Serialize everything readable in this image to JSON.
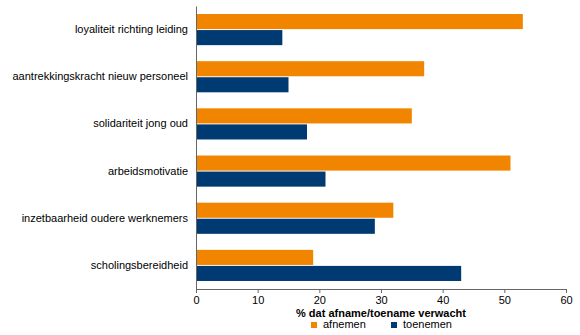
{
  "chart_data": {
    "type": "bar",
    "orientation": "horizontal",
    "categories": [
      "loyaliteit richting leiding",
      "aantrekkingskracht nieuw personeel",
      "solidariteit jong oud",
      "arbeidsmotivatie",
      "inzetbaarheid oudere werknemers",
      "scholingsbereidheid"
    ],
    "series": [
      {
        "name": "afnemen",
        "color": "#f28500",
        "values": [
          53,
          37,
          35,
          51,
          32,
          19
        ]
      },
      {
        "name": "toenemen",
        "color": "#003a73",
        "values": [
          14,
          15,
          18,
          21,
          29,
          43
        ]
      }
    ],
    "x_label": "% dat afname/toename verwacht",
    "xlim": [
      0,
      60
    ],
    "xticks": [
      0,
      10,
      20,
      30,
      40,
      50,
      60
    ],
    "legend": "bottom"
  }
}
